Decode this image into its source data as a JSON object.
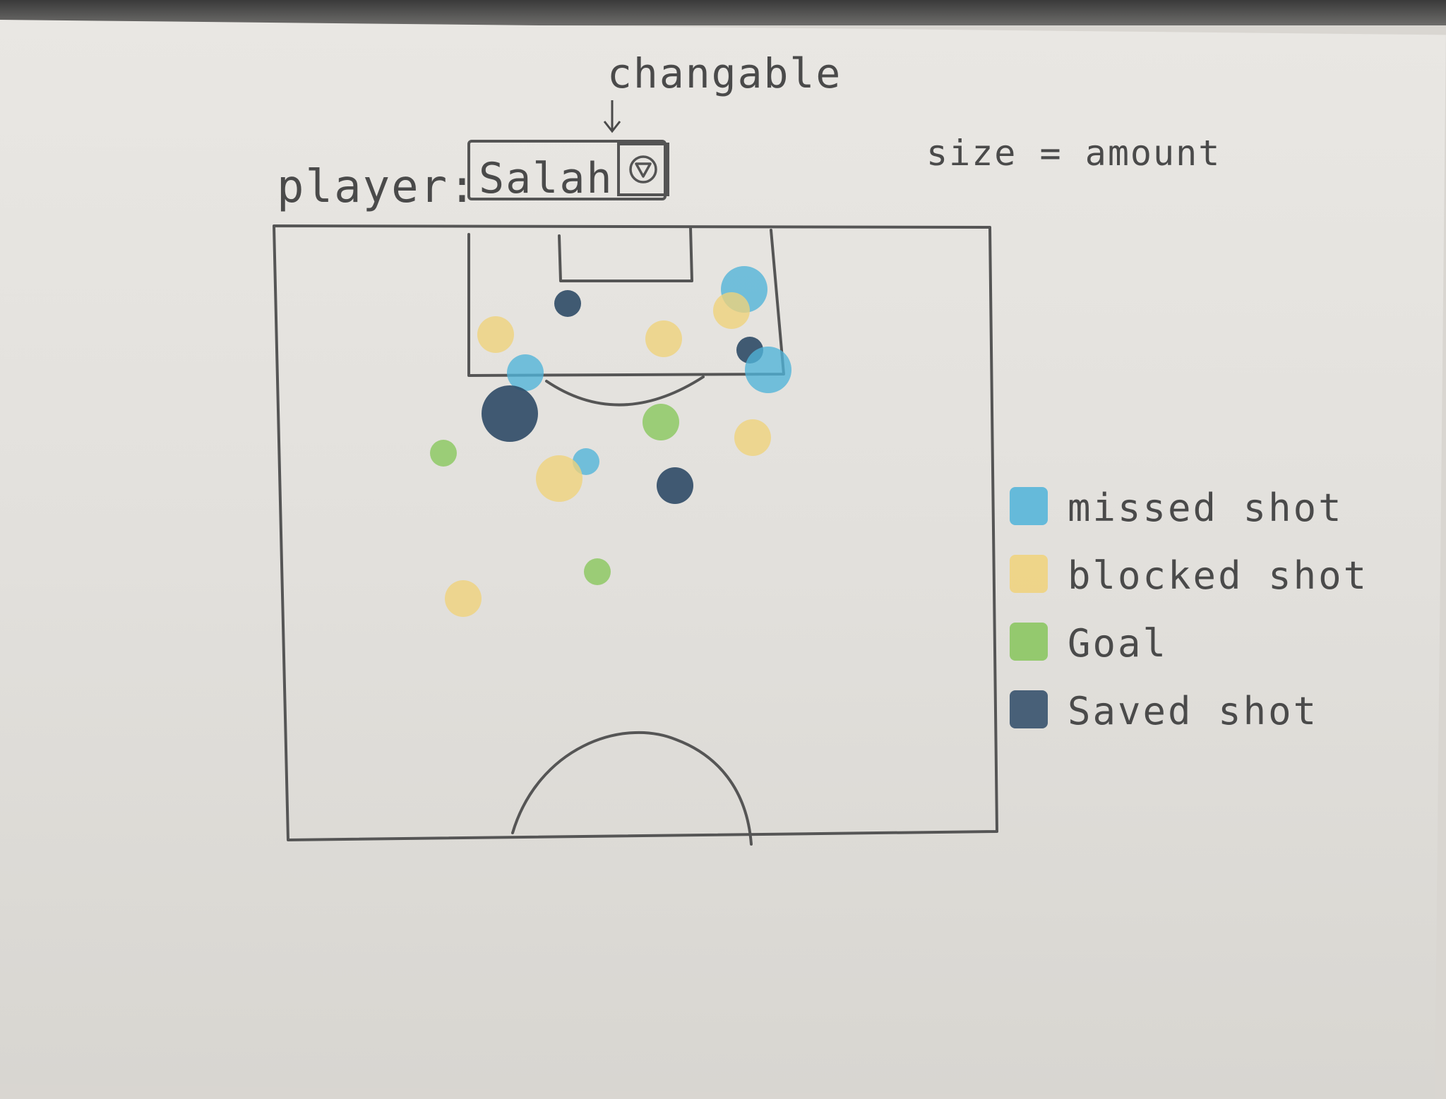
{
  "annotations": {
    "changable": "changable",
    "size_note": "size = amount"
  },
  "player_selector": {
    "label": "player:",
    "value": "Salah"
  },
  "legend": [
    {
      "key": "missed",
      "label": "missed shot",
      "color": "#4fb3d9"
    },
    {
      "key": "blocked",
      "label": "blocked shot",
      "color": "#f0d27a"
    },
    {
      "key": "goal",
      "label": "Goal",
      "color": "#86c65a"
    },
    {
      "key": "saved",
      "label": "Saved shot",
      "color": "#2e4a66"
    }
  ],
  "shots": [
    {
      "type": "missed",
      "amount": 3
    },
    {
      "type": "saved",
      "amount": 1
    },
    {
      "type": "blocked",
      "amount": 2
    },
    {
      "type": "blocked",
      "amount": 2
    },
    {
      "type": "blocked",
      "amount": 2
    },
    {
      "type": "saved",
      "amount": 1
    },
    {
      "type": "missed",
      "amount": 3
    },
    {
      "type": "missed",
      "amount": 2
    },
    {
      "type": "saved",
      "amount": 4
    },
    {
      "type": "goal",
      "amount": 2
    },
    {
      "type": "blocked",
      "amount": 2
    },
    {
      "type": "goal",
      "amount": 1
    },
    {
      "type": "missed",
      "amount": 1
    },
    {
      "type": "blocked",
      "amount": 3
    },
    {
      "type": "saved",
      "amount": 2
    },
    {
      "type": "goal",
      "amount": 1
    },
    {
      "type": "blocked",
      "amount": 2
    }
  ]
}
